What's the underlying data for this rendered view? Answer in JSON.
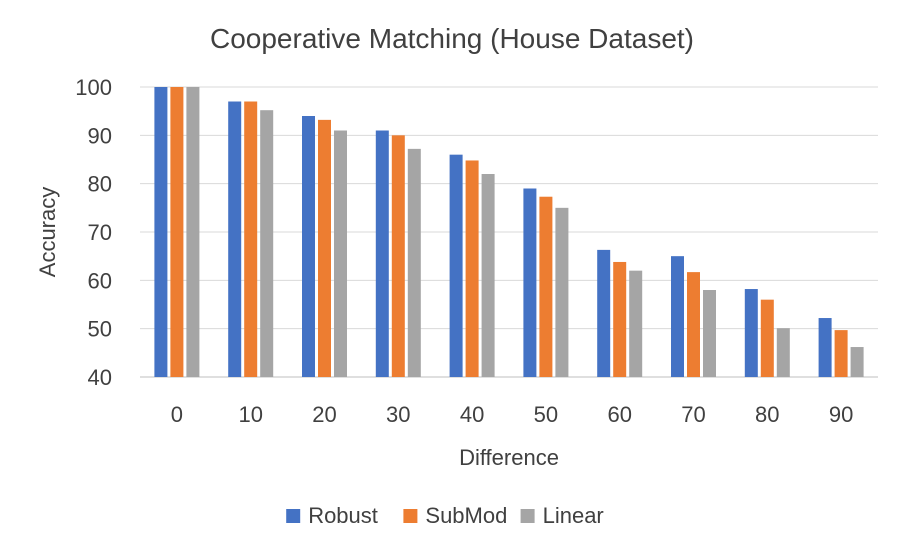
{
  "chart_data": {
    "type": "bar",
    "title": "Cooperative Matching (House Dataset)",
    "xlabel": "Difference",
    "ylabel": "Accuracy",
    "ylim": [
      40,
      100
    ],
    "yticks": [
      40,
      50,
      60,
      70,
      80,
      90,
      100
    ],
    "categories": [
      "0",
      "10",
      "20",
      "30",
      "40",
      "50",
      "60",
      "70",
      "80",
      "90"
    ],
    "series": [
      {
        "name": "Robust",
        "color": "#4472c4",
        "values": [
          100,
          97,
          94,
          91,
          86,
          79,
          66.3,
          65,
          58.2,
          52.2
        ]
      },
      {
        "name": "SubMod",
        "color": "#ed7d31",
        "values": [
          100,
          97,
          93.2,
          90,
          84.8,
          77.3,
          63.8,
          61.7,
          56,
          49.7
        ]
      },
      {
        "name": "Linear",
        "color": "#a5a5a5",
        "values": [
          100,
          95.2,
          91,
          87.2,
          82,
          75,
          62,
          58,
          50.1,
          46.2
        ]
      }
    ],
    "grid": true,
    "legend_position": "bottom"
  }
}
